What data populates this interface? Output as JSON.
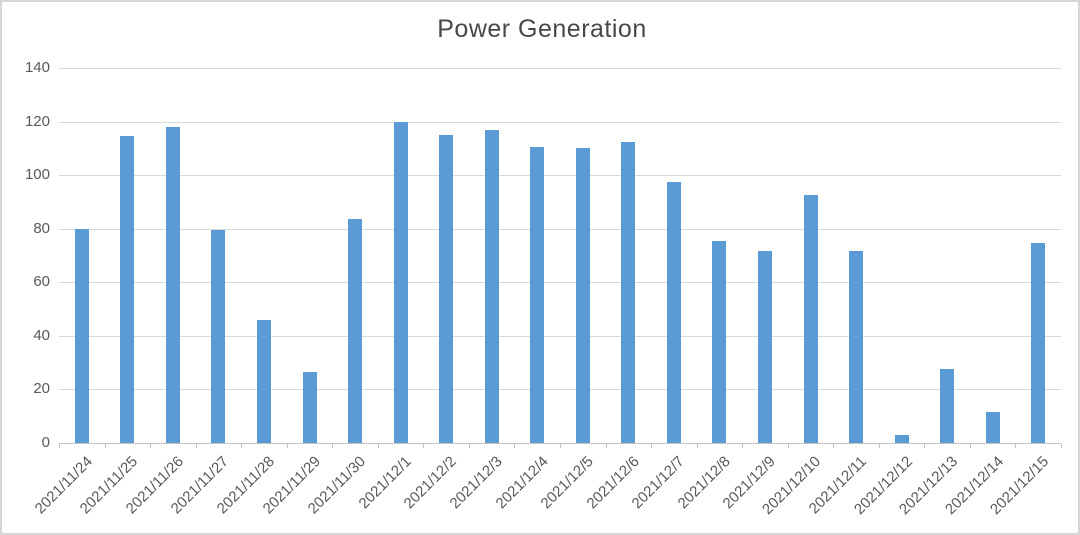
{
  "chart": {
    "title": "Power Generation"
  },
  "chart_data": {
    "type": "bar",
    "title": "Power Generation",
    "xlabel": "",
    "ylabel": "",
    "categories": [
      "2021/11/24",
      "2021/11/25",
      "2021/11/26",
      "2021/11/27",
      "2021/11/28",
      "2021/11/29",
      "2021/11/30",
      "2021/12/1",
      "2021/12/2",
      "2021/12/3",
      "2021/12/4",
      "2021/12/5",
      "2021/12/6",
      "2021/12/7",
      "2021/12/8",
      "2021/12/9",
      "2021/12/10",
      "2021/12/11",
      "2021/12/12",
      "2021/12/13",
      "2021/12/14",
      "2021/12/15"
    ],
    "values": [
      80,
      114.5,
      118,
      79.5,
      46,
      26.5,
      83.5,
      120,
      115,
      117,
      110.5,
      110,
      112.5,
      97.5,
      75.5,
      71.5,
      92.5,
      71.5,
      3,
      27.5,
      11.5,
      74.5
    ],
    "ylim": [
      0,
      140
    ],
    "yticks": [
      0,
      20,
      40,
      60,
      80,
      100,
      120,
      140
    ],
    "grid": true,
    "legend": false,
    "colors": {
      "bar": "#5B9BD5",
      "gridline": "#D9D9D9",
      "axis_line": "#C2C2C2",
      "tick_label": "#595959",
      "title": "#484848",
      "frame_border": "#D6D6D6",
      "background": "#FFFFFF"
    }
  }
}
